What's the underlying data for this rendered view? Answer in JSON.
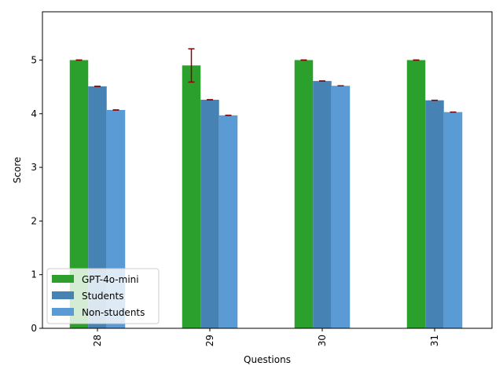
{
  "chart_data": {
    "type": "bar",
    "categories": [
      "28",
      "29",
      "30",
      "31"
    ],
    "xlabel": "Questions",
    "ylabel": "Score",
    "ylim": [
      0,
      5.9
    ],
    "yticks": [
      0,
      1,
      2,
      3,
      4,
      5
    ],
    "xtick_rotation": 90,
    "legend_position": "lower-left",
    "error_bar_color": "#8b0000",
    "series": [
      {
        "name": "GPT-4o-mini",
        "color": "#2ca02c",
        "values": [
          5.0,
          4.9,
          5.0,
          5.0
        ],
        "errors": [
          0.0,
          0.31,
          0.0,
          0.0
        ]
      },
      {
        "name": "Students",
        "color": "#4682b4",
        "values": [
          4.51,
          4.26,
          4.61,
          4.25
        ],
        "errors": [
          0,
          0,
          0,
          0
        ]
      },
      {
        "name": "Non-students",
        "color": "#5b9bd5",
        "values": [
          4.07,
          3.97,
          4.52,
          4.03
        ],
        "errors": [
          0,
          0,
          0,
          0
        ]
      }
    ]
  }
}
